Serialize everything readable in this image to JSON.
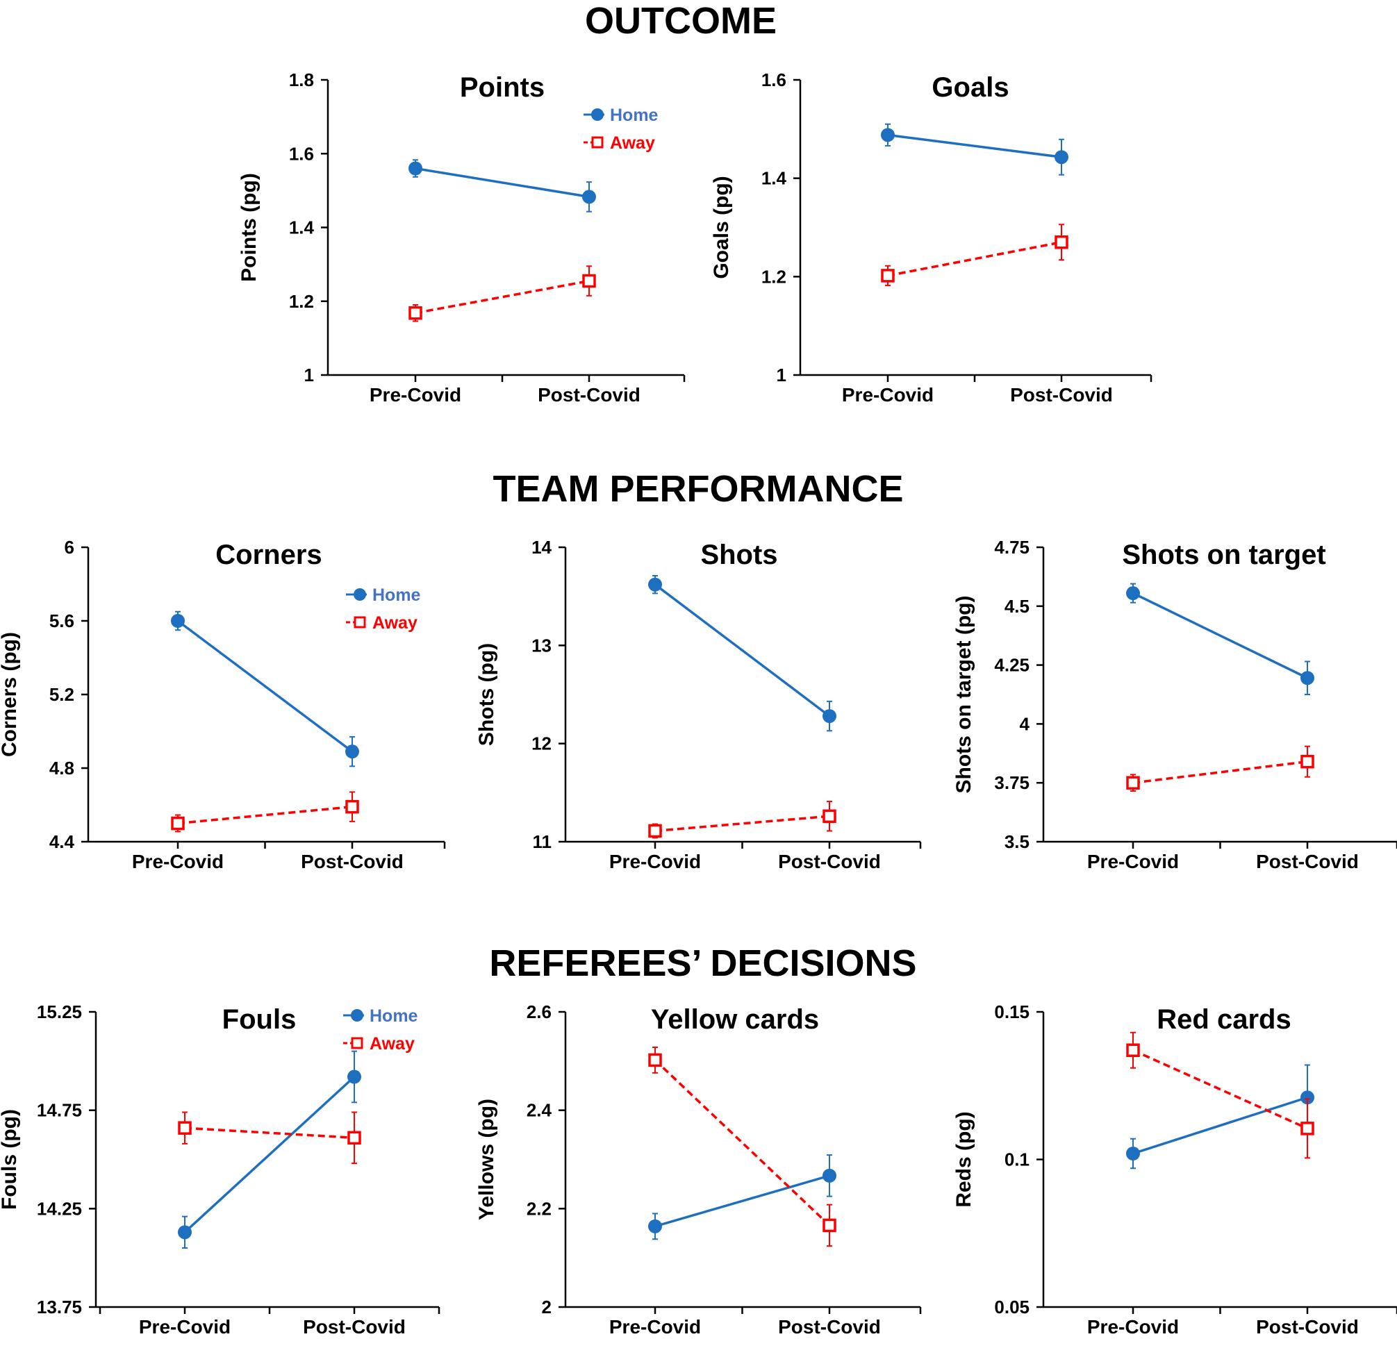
{
  "sections": [
    {
      "title": "OUTCOME"
    },
    {
      "title": "TEAM PERFORMANCE"
    },
    {
      "title": "REFEREES’ DECISIONS"
    }
  ],
  "colors": {
    "home": "#1f6fc1",
    "away": "#ff0000",
    "home_legend_text": "#4472c4",
    "axis": "#000000"
  },
  "chart_data": [
    {
      "type": "line",
      "title": "Points",
      "ylabel": "Points (pg)",
      "categories": [
        "Pre-Covid",
        "Post-Covid"
      ],
      "ylim": [
        1,
        1.8
      ],
      "yticks": [
        "1",
        "1.2",
        "1.4",
        "1.6",
        "1.8"
      ],
      "legend": "top-right",
      "series": [
        {
          "name": "Home",
          "values": [
            1.56,
            1.483
          ],
          "err": [
            0.023,
            0.04
          ]
        },
        {
          "name": "Away",
          "values": [
            1.168,
            1.255
          ],
          "err": [
            0.022,
            0.04
          ]
        }
      ]
    },
    {
      "type": "line",
      "title": "Goals",
      "ylabel": "Goals (pg)",
      "categories": [
        "Pre-Covid",
        "Post-Covid"
      ],
      "ylim": [
        1,
        1.6
      ],
      "yticks": [
        "1",
        "1.2",
        "1.4",
        "1.6"
      ],
      "series": [
        {
          "name": "Home",
          "values": [
            1.488,
            1.443
          ],
          "err": [
            0.022,
            0.036
          ]
        },
        {
          "name": "Away",
          "values": [
            1.202,
            1.27
          ],
          "err": [
            0.02,
            0.036
          ]
        }
      ]
    },
    {
      "type": "line",
      "title": "Corners",
      "ylabel": "Corners (pg)",
      "categories": [
        "Pre-Covid",
        "Post-Covid"
      ],
      "ylim": [
        4.4,
        6
      ],
      "yticks": [
        "4.4",
        "4.8",
        "5.2",
        "5.6",
        "6"
      ],
      "legend": "top-right",
      "series": [
        {
          "name": "Home",
          "values": [
            5.6,
            4.89
          ],
          "err": [
            0.05,
            0.08
          ]
        },
        {
          "name": "Away",
          "values": [
            4.5,
            4.59
          ],
          "err": [
            0.045,
            0.08
          ]
        }
      ]
    },
    {
      "type": "line",
      "title": "Shots",
      "ylabel": "Shots (pg)",
      "categories": [
        "Pre-Covid",
        "Post-Covid"
      ],
      "ylim": [
        11,
        14
      ],
      "yticks": [
        "11",
        "12",
        "13",
        "14"
      ],
      "series": [
        {
          "name": "Home",
          "values": [
            13.62,
            12.28
          ],
          "err": [
            0.09,
            0.15
          ]
        },
        {
          "name": "Away",
          "values": [
            11.11,
            11.26
          ],
          "err": [
            0.07,
            0.15
          ]
        }
      ]
    },
    {
      "type": "line",
      "title": "Shots on target",
      "ylabel": "Shots on target (pg)",
      "categories": [
        "Pre-Covid",
        "Post-Covid"
      ],
      "ylim": [
        3.5,
        4.75
      ],
      "yticks": [
        "3.5",
        "3.75",
        "4",
        "4.25",
        "4.5",
        "4.75"
      ],
      "series": [
        {
          "name": "Home",
          "values": [
            4.555,
            4.195
          ],
          "err": [
            0.04,
            0.07
          ]
        },
        {
          "name": "Away",
          "values": [
            3.75,
            3.84
          ],
          "err": [
            0.035,
            0.065
          ]
        }
      ]
    },
    {
      "type": "line",
      "title": "Fouls",
      "ylabel": "Fouls (pg)",
      "categories": [
        "Pre-Covid",
        "Post-Covid"
      ],
      "ylim": [
        13.75,
        15.25
      ],
      "yticks": [
        "13.75",
        "14.25",
        "14.75",
        "15.25"
      ],
      "legend": "top-right",
      "series": [
        {
          "name": "Home",
          "values": [
            14.13,
            14.92
          ],
          "err": [
            0.08,
            0.13
          ]
        },
        {
          "name": "Away",
          "values": [
            14.66,
            14.61
          ],
          "err": [
            0.08,
            0.13
          ]
        }
      ]
    },
    {
      "type": "line",
      "title": "Yellow cards",
      "ylabel": "Yellows (pg)",
      "categories": [
        "Pre-Covid",
        "Post-Covid"
      ],
      "ylim": [
        2,
        2.6
      ],
      "yticks": [
        "2",
        "2.2",
        "2.4",
        "2.6"
      ],
      "series": [
        {
          "name": "Home",
          "values": [
            2.164,
            2.267
          ],
          "err": [
            0.026,
            0.042
          ]
        },
        {
          "name": "Away",
          "values": [
            2.502,
            2.166
          ],
          "err": [
            0.026,
            0.042
          ]
        }
      ]
    },
    {
      "type": "line",
      "title": "Red cards",
      "ylabel": "Reds (pg)",
      "categories": [
        "Pre-Covid",
        "Post-Covid"
      ],
      "ylim": [
        0.05,
        0.15
      ],
      "yticks": [
        "0.05",
        "0.1",
        "0.15"
      ],
      "series": [
        {
          "name": "Home",
          "values": [
            0.102,
            0.121
          ],
          "err": [
            0.005,
            0.011
          ]
        },
        {
          "name": "Away",
          "values": [
            0.137,
            0.1105
          ],
          "err": [
            0.006,
            0.01
          ]
        }
      ]
    }
  ]
}
